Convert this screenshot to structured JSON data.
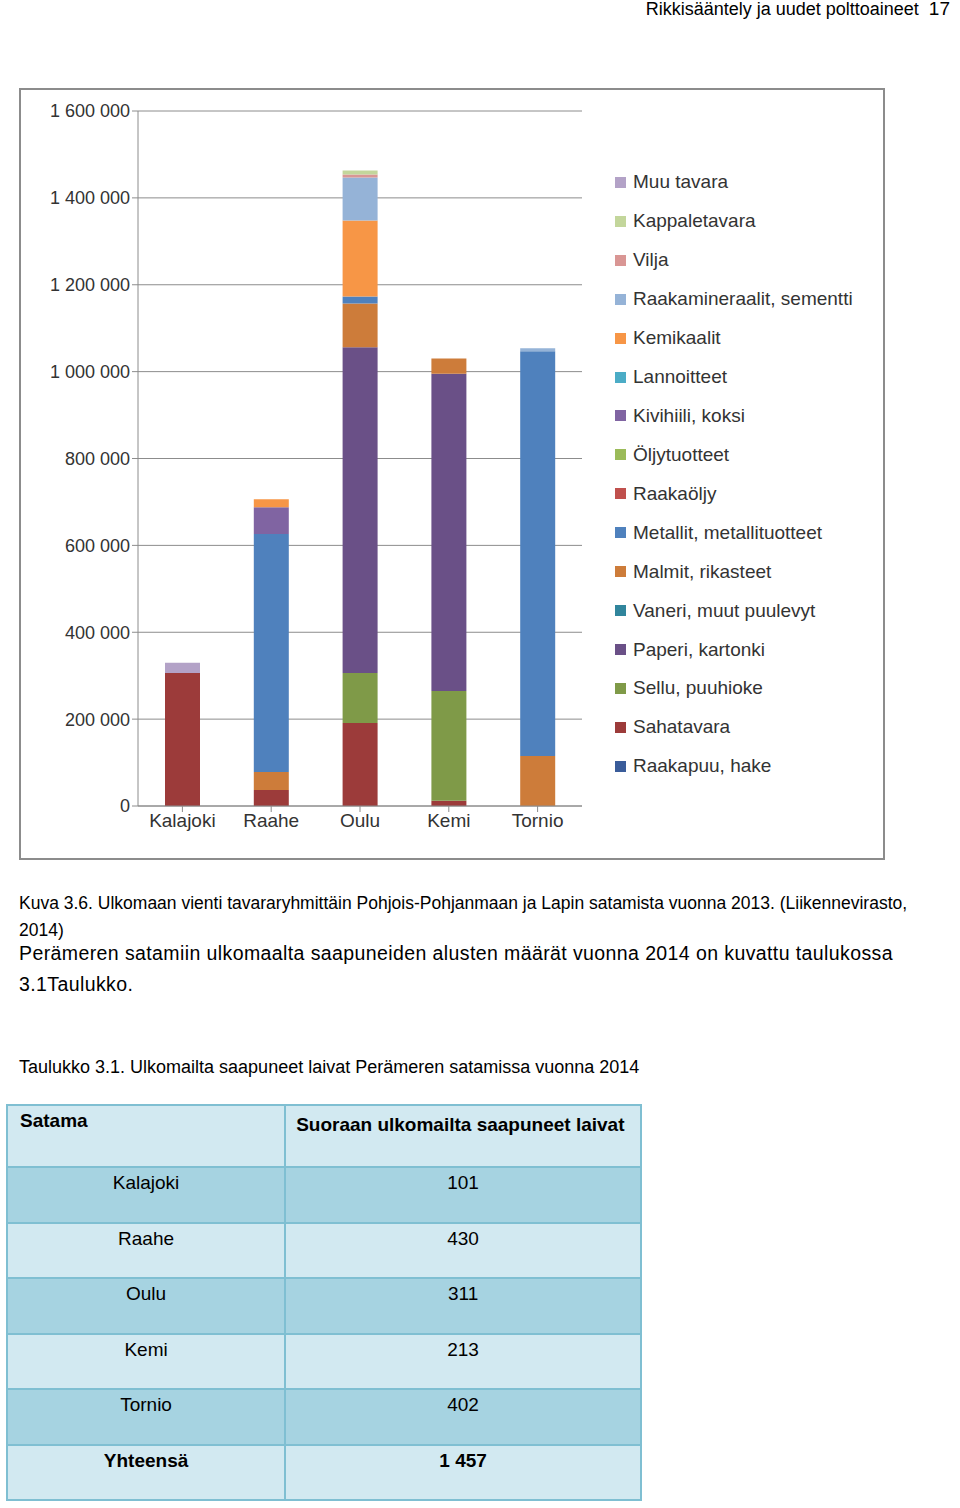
{
  "header": {
    "title": "Rikkisääntely ja uudet polttoaineet",
    "page": "17"
  },
  "chart_data": {
    "type": "bar",
    "stacked": true,
    "grid": true,
    "legend": "right",
    "categories": [
      "Kalajoki",
      "Raahe",
      "Oulu",
      "Kemi",
      "Tornio"
    ],
    "ylim": [
      0,
      1600000
    ],
    "yticks": [
      0,
      {
        "value": 200000,
        "label": "200 000"
      },
      {
        "value": 400000,
        "label": "400 000"
      },
      {
        "value": 600000,
        "label": "600 000"
      },
      {
        "value": 800000,
        "label": "800 000"
      },
      {
        "value": 1000000,
        "label": "1 000 000"
      },
      {
        "value": 1200000,
        "label": "1 200 000"
      },
      {
        "value": 1400000,
        "label": "1 400 000"
      },
      {
        "value": 1600000,
        "label": "1 600 000"
      }
    ],
    "series": [
      {
        "name": "Raakapuu, hake",
        "color": "#3a5c9a",
        "values": [
          0,
          0,
          0,
          0,
          0
        ]
      },
      {
        "name": "Sahatavara",
        "color": "#9c3b3a",
        "values": [
          306000,
          37000,
          191000,
          12000,
          0
        ]
      },
      {
        "name": "Sellu, puuhioke",
        "color": "#7f9a48",
        "values": [
          0,
          0,
          115000,
          253000,
          0
        ]
      },
      {
        "name": "Paperi, kartonki",
        "color": "#6a5087",
        "values": [
          0,
          0,
          750000,
          730000,
          0
        ]
      },
      {
        "name": "Vaneri, muut puulevyt",
        "color": "#31859c",
        "values": [
          0,
          0,
          0,
          0,
          0
        ]
      },
      {
        "name": "Malmit, rikasteet",
        "color": "#cd7c3a",
        "values": [
          0,
          41000,
          101000,
          35000,
          115000
        ]
      },
      {
        "name": "Metallit, metallituotteet",
        "color": "#4f81bd",
        "values": [
          0,
          548000,
          16000,
          0,
          932000
        ]
      },
      {
        "name": "Raakaöljy",
        "color": "#c0504d",
        "values": [
          0,
          0,
          0,
          0,
          0
        ]
      },
      {
        "name": "Öljytuotteet",
        "color": "#9bbb59",
        "values": [
          0,
          0,
          0,
          0,
          0
        ]
      },
      {
        "name": "Kivihiili, koksi",
        "color": "#8064a2",
        "values": [
          0,
          62000,
          0,
          0,
          0
        ]
      },
      {
        "name": "Lannoitteet",
        "color": "#4bacc6",
        "values": [
          0,
          0,
          0,
          0,
          0
        ]
      },
      {
        "name": "Kemikaalit",
        "color": "#f79646",
        "values": [
          0,
          18000,
          175000,
          0,
          0
        ]
      },
      {
        "name": "Raakamineraalit, sementti",
        "color": "#95b3d7",
        "values": [
          0,
          0,
          99000,
          0,
          7000
        ]
      },
      {
        "name": "Vilja",
        "color": "#d99694",
        "values": [
          0,
          0,
          7000,
          0,
          0
        ]
      },
      {
        "name": "Kappaletavara",
        "color": "#c3d69b",
        "values": [
          0,
          0,
          9000,
          0,
          0
        ]
      },
      {
        "name": "Muu tavara",
        "color": "#b3a2c7",
        "values": [
          24000,
          0,
          0,
          0,
          0
        ]
      }
    ]
  },
  "caption": "Kuva 3.6. Ulkomaan vienti tavararyhmittäin Pohjois-Pohjanmaan ja Lapin satamista vuonna 2013. (Liikennevirasto, 2014)",
  "paragraph": "Perämeren satamiin ulkomaalta saapuneiden alusten määrät vuonna 2014 on kuvattu taulukossa 3.1Taulukko.",
  "table": {
    "title": "Taulukko 3.1. Ulkomailta saapuneet laivat Perämeren satamissa vuonna 2014",
    "header": [
      "Satama",
      "Suoraan ulkomailta saapuneet laivat"
    ],
    "rows": [
      [
        "Kalajoki",
        "101"
      ],
      [
        "Raahe",
        "430"
      ],
      [
        "Oulu",
        "311"
      ],
      [
        "Kemi",
        "213"
      ],
      [
        "Tornio",
        "402"
      ]
    ],
    "total": [
      "Yhteensä",
      "1 457"
    ]
  }
}
